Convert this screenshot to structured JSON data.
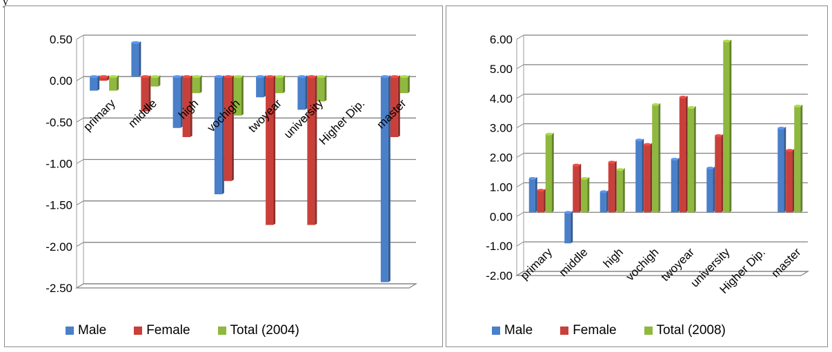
{
  "top_text": "y",
  "colors": {
    "male": "#4a7fc9",
    "female": "#c9403a",
    "total": "#8fb83e"
  },
  "chart_data": [
    {
      "type": "bar",
      "categories": [
        "primary",
        "middle",
        "high",
        "vochigh",
        "twoyear",
        "university",
        "Higher Dip.",
        "master"
      ],
      "series": [
        {
          "name": "Male",
          "values": [
            -0.17,
            0.41,
            -0.62,
            -1.42,
            -0.25,
            -0.4,
            null,
            -2.48
          ]
        },
        {
          "name": "Female",
          "values": [
            -0.05,
            -0.42,
            -0.73,
            -1.26,
            -1.79,
            -1.79,
            null,
            -0.73
          ]
        },
        {
          "name": "Total (2004)",
          "values": [
            -0.17,
            -0.12,
            -0.2,
            -0.47,
            -0.2,
            -0.3,
            null,
            -0.2
          ]
        }
      ],
      "ylim": [
        -2.5,
        0.5
      ],
      "yticks": [
        "0.50",
        "0.00",
        "-0.50",
        "-1.00",
        "-1.50",
        "-2.00",
        "-2.50"
      ],
      "grid": true,
      "legend": "bottom"
    },
    {
      "type": "bar",
      "categories": [
        "primary",
        "middle",
        "high",
        "vochigh",
        "twoyear",
        "university",
        "Higher Dip.",
        "master"
      ],
      "series": [
        {
          "name": "Male",
          "values": [
            1.15,
            -1.05,
            0.7,
            2.45,
            1.8,
            1.5,
            null,
            2.85
          ]
        },
        {
          "name": "Female",
          "values": [
            0.75,
            1.6,
            1.7,
            2.3,
            3.9,
            2.6,
            null,
            2.1
          ]
        },
        {
          "name": "Total (2008)",
          "values": [
            2.65,
            1.15,
            1.45,
            3.65,
            3.55,
            5.8,
            null,
            3.6
          ]
        }
      ],
      "ylim": [
        -2.0,
        6.0
      ],
      "yticks": [
        "6.00",
        "5.00",
        "4.00",
        "3.00",
        "2.00",
        "1.00",
        "0.00",
        "-1.00",
        "-2.00"
      ],
      "grid": true,
      "legend": "bottom"
    }
  ]
}
